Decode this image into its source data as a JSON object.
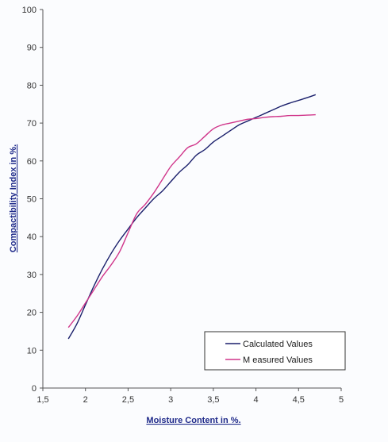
{
  "chart_data": {
    "type": "line",
    "xlabel": "Moisture Content in %.",
    "ylabel": "Compactibility Index in %.",
    "xlim": [
      1.5,
      5
    ],
    "ylim": [
      0,
      100
    ],
    "x_ticks": [
      "1,5",
      "2",
      "2,5",
      "3",
      "3,5",
      "4",
      "4,5",
      "5"
    ],
    "x_tick_values": [
      1.5,
      2,
      2.5,
      3,
      3.5,
      4,
      4.5,
      5
    ],
    "y_ticks": [
      "0",
      "10",
      "20",
      "30",
      "40",
      "50",
      "60",
      "70",
      "80",
      "90",
      "100"
    ],
    "y_tick_values": [
      0,
      10,
      20,
      30,
      40,
      50,
      60,
      70,
      80,
      90,
      100
    ],
    "legend_position": "bottom-right",
    "series": [
      {
        "name": "Calculated Values",
        "color": "#1a1f6b",
        "x": [
          1.8,
          1.9,
          2.0,
          2.1,
          2.2,
          2.3,
          2.4,
          2.5,
          2.6,
          2.7,
          2.8,
          2.9,
          3.0,
          3.1,
          3.2,
          3.3,
          3.4,
          3.5,
          3.6,
          3.7,
          3.8,
          3.9,
          4.0,
          4.1,
          4.2,
          4.3,
          4.4,
          4.5,
          4.6,
          4.7
        ],
        "values": [
          13,
          17,
          22,
          27,
          31.5,
          35.5,
          39,
          42,
          45,
          47.5,
          50,
          52,
          54.5,
          57,
          59,
          61.5,
          63,
          65,
          66.5,
          68,
          69.5,
          70.5,
          71.5,
          72.5,
          73.5,
          74.5,
          75.3,
          76,
          76.7,
          77.5
        ]
      },
      {
        "name": "M easured Values",
        "color": "#d0358a",
        "x": [
          1.8,
          1.9,
          2.0,
          2.1,
          2.2,
          2.3,
          2.4,
          2.5,
          2.6,
          2.7,
          2.8,
          2.9,
          3.0,
          3.1,
          3.2,
          3.3,
          3.4,
          3.5,
          3.6,
          3.7,
          3.8,
          3.9,
          4.0,
          4.1,
          4.2,
          4.3,
          4.4,
          4.5,
          4.6,
          4.7
        ],
        "values": [
          16,
          19,
          22.5,
          26,
          29.5,
          32.5,
          36,
          41,
          46,
          48.5,
          51.5,
          55,
          58.5,
          61,
          63.5,
          64.5,
          66.5,
          68.5,
          69.5,
          70,
          70.5,
          71,
          71.2,
          71.5,
          71.7,
          71.8,
          72,
          72,
          72.1,
          72.2
        ]
      }
    ]
  }
}
